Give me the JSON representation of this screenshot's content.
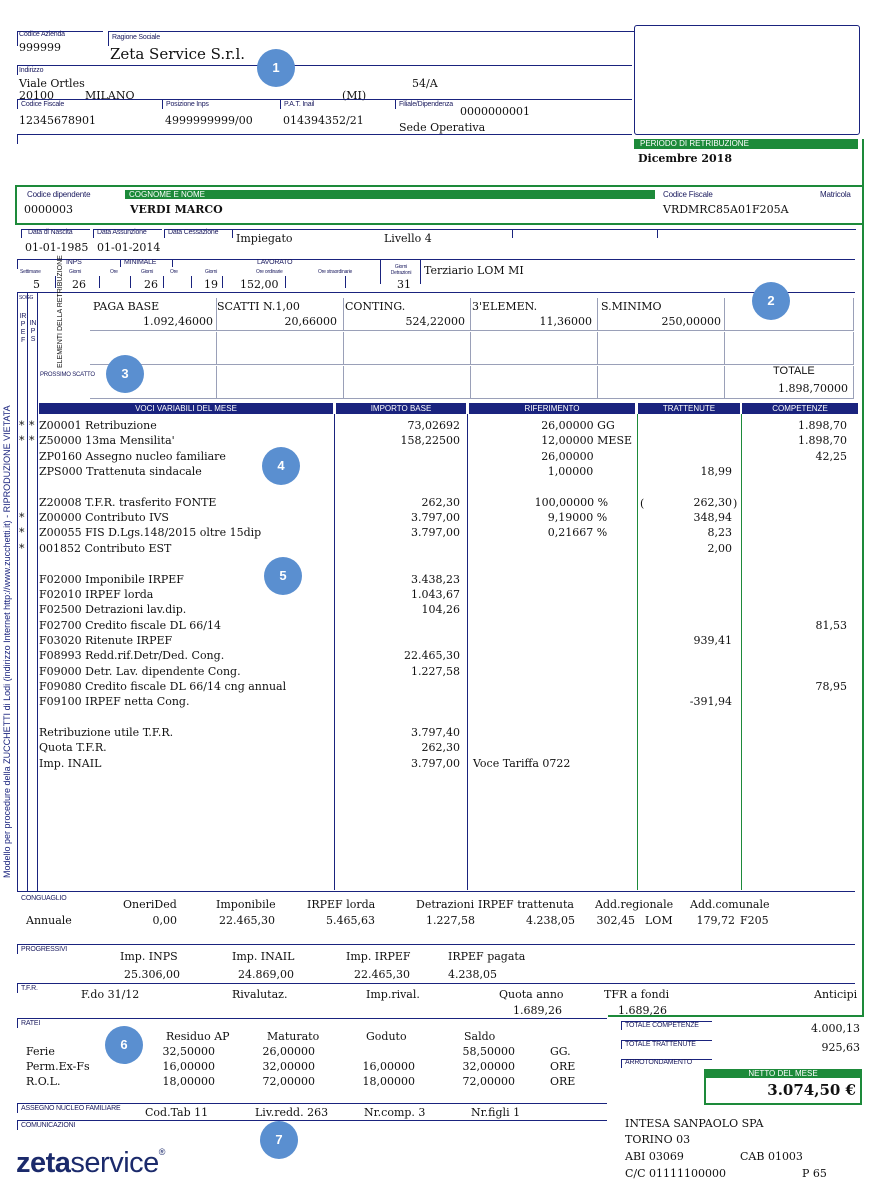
{
  "header": {
    "codice_azienda_label": "Codice Azienda",
    "codice_azienda": "999999",
    "ragione_sociale_label": "Ragione Sociale",
    "ragione_sociale": "Zeta Service S.r.l.",
    "indirizzo_label": "Indirizzo",
    "via": "Viale Ortles",
    "civico": "54/A",
    "cap": "20100",
    "citta": "MILANO",
    "provincia": "(MI)",
    "codice_fiscale_label": "Codice Fiscale",
    "codice_fiscale": "12345678901",
    "posizione_inps_label": "Posizione Inps",
    "posizione_inps": "4999999999/00",
    "pat_inail_label": "P.A.T. Inail",
    "pat_inail": "014394352/21",
    "filiale_label": "Filiale/Dipendenza",
    "filiale_code": "0000000001",
    "sede": "Sede Operativa",
    "periodo_label": "PERIODO DI RETRIBUZIONE",
    "periodo": "Dicembre 2018"
  },
  "employee": {
    "codice_label": "Codice dipendente",
    "codice": "0000003",
    "nome_label": "COGNOME E NOME",
    "nome": "VERDI MARCO",
    "cf_label": "Codice Fiscale",
    "cf": "VRDMRC85A01F205A",
    "matricola_label": "Matricola",
    "nascita_label": "Data di Nascita",
    "nascita": "01-01-1985",
    "assunzione_label": "Data Assunzione",
    "assunzione": "01-01-2014",
    "cessazione_label": "Data Cessazione",
    "qualifica": "Impiegato",
    "livello": "Livello 4",
    "contratto": "Terziario LOM MI"
  },
  "counters": {
    "inps_label": "INPS",
    "minimale_label": "MINIMALE",
    "lavorato_label": "LAVORATO",
    "settimane_label": "Settimane",
    "giorni_label": "Giorni",
    "ore_label": "Ore",
    "ore_ordinarie_label": "Ore ordinarie",
    "ore_straordinarie_label": "Ore straordinarie",
    "giorni_detrazioni_label": "Giorni Detrazioni",
    "settimane": "5",
    "inps_giorni": "26",
    "min_giorni": "26",
    "lav_giorni": "19",
    "ore_ordinarie": "152,00",
    "detrazioni_giorni": "31"
  },
  "elements": {
    "side_label": "ELEMENTI DELLA RETRIBUZIONE",
    "sogg_label": "SOGG",
    "irpef_label": "IRPEF",
    "inps_label": "INPS",
    "prossimo_scatto_label": "PROSSIMO SCATTO",
    "items": [
      {
        "label": "PAGA BASE",
        "value": "1.092,46000"
      },
      {
        "label": "SCATTI N.1,00",
        "value": "20,66000"
      },
      {
        "label": "CONTING.",
        "value": "524,22000"
      },
      {
        "label": "3'ELEMEN.",
        "value": "11,36000"
      },
      {
        "label": "S.MINIMO",
        "value": "250,00000"
      }
    ],
    "totale_label": "TOTALE",
    "totale": "1.898,70000"
  },
  "voci_header": {
    "voci": "VOCI VARIABILI DEL MESE",
    "importo": "IMPORTO BASE",
    "riferimento": "RIFERIMENTO",
    "trattenute": "TRATTENUTE",
    "competenze": "COMPETENZE"
  },
  "voci": [
    {
      "m1": "*",
      "m2": "*",
      "desc": "Z00001 Retribuzione",
      "importo": "73,02692",
      "rif": "26,00000 GG",
      "tratt": "",
      "comp": "1.898,70"
    },
    {
      "m1": "*",
      "m2": "*",
      "desc": "Z50000 13ma Mensilita'",
      "importo": "158,22500",
      "rif": "12,00000 MESE",
      "tratt": "",
      "comp": "1.898,70"
    },
    {
      "m1": "",
      "m2": "",
      "desc": "ZP0160 Assegno nucleo familiare",
      "importo": "",
      "rif": "26,00000",
      "tratt": "",
      "comp": "42,25"
    },
    {
      "m1": "",
      "m2": "",
      "desc": "ZPS000 Trattenuta sindacale",
      "importo": "",
      "rif": "1,00000",
      "tratt": "18,99",
      "comp": ""
    },
    {
      "m1": "",
      "m2": "",
      "desc": "",
      "importo": "",
      "rif": "",
      "tratt": "",
      "comp": ""
    },
    {
      "m1": "",
      "m2": "",
      "desc": "Z20008 T.F.R. trasferito  FONTE",
      "importo": "262,30",
      "rif": "100,00000 %",
      "tratt": "262,30",
      "comp": ""
    },
    {
      "m1": "*",
      "m2": "",
      "desc": "Z00000 Contributo IVS",
      "importo": "3.797,00",
      "rif": "9,19000 %",
      "tratt": "348,94",
      "comp": ""
    },
    {
      "m1": "*",
      "m2": "",
      "desc": "Z00055 FIS D.Lgs.148/2015 oltre 15dip",
      "importo": "3.797,00",
      "rif": "0,21667 %",
      "tratt": "8,23",
      "comp": ""
    },
    {
      "m1": "*",
      "m2": "",
      "desc": "001852 Contributo EST",
      "importo": "",
      "rif": "",
      "tratt": "2,00",
      "comp": ""
    },
    {
      "m1": "",
      "m2": "",
      "desc": "",
      "importo": "",
      "rif": "",
      "tratt": "",
      "comp": ""
    },
    {
      "m1": "",
      "m2": "",
      "desc": "F02000 Imponibile IRPEF",
      "importo": "3.438,23",
      "rif": "",
      "tratt": "",
      "comp": ""
    },
    {
      "m1": "",
      "m2": "",
      "desc": "F02010 IRPEF lorda",
      "importo": "1.043,67",
      "rif": "",
      "tratt": "",
      "comp": ""
    },
    {
      "m1": "",
      "m2": "",
      "desc": "F02500 Detrazioni lav.dip.",
      "importo": "104,26",
      "rif": "",
      "tratt": "",
      "comp": ""
    },
    {
      "m1": "",
      "m2": "",
      "desc": "F02700 Credito fiscale DL 66/14",
      "importo": "",
      "rif": "",
      "tratt": "",
      "comp": "81,53"
    },
    {
      "m1": "",
      "m2": "",
      "desc": "F03020 Ritenute IRPEF",
      "importo": "",
      "rif": "",
      "tratt": "939,41",
      "comp": ""
    },
    {
      "m1": "",
      "m2": "",
      "desc": "F08993 Redd.rif.Detr/Ded.   Cong.",
      "importo": "22.465,30",
      "rif": "",
      "tratt": "",
      "comp": ""
    },
    {
      "m1": "",
      "m2": "",
      "desc": "F09000 Detr. Lav. dipendente Cong.",
      "importo": "1.227,58",
      "rif": "",
      "tratt": "",
      "comp": ""
    },
    {
      "m1": "",
      "m2": "",
      "desc": "F09080 Credito fiscale DL 66/14 cng annual",
      "importo": "",
      "rif": "",
      "tratt": "",
      "comp": "78,95"
    },
    {
      "m1": "",
      "m2": "",
      "desc": "F09100 IRPEF netta       Cong.",
      "importo": "",
      "rif": "",
      "tratt": "-391,94",
      "comp": ""
    },
    {
      "m1": "",
      "m2": "",
      "desc": "",
      "importo": "",
      "rif": "",
      "tratt": "",
      "comp": ""
    },
    {
      "m1": "",
      "m2": "",
      "desc": "        Retribuzione utile T.F.R.",
      "importo": "3.797,40",
      "rif": "",
      "tratt": "",
      "comp": ""
    },
    {
      "m1": "",
      "m2": "",
      "desc": "        Quota T.F.R.",
      "importo": "262,30",
      "rif": "",
      "tratt": "",
      "comp": ""
    },
    {
      "m1": "",
      "m2": "",
      "desc": "        Imp. INAIL",
      "importo": "3.797,00",
      "rif": "Voce Tariffa     0722",
      "tratt": "",
      "comp": ""
    }
  ],
  "side_text": "Modello per procedure della ZUCCHETTI di Lodi (indirizzo Internet http://www.zucchetti.it) - RIPRODUZIONE VIETATA",
  "conguaglio": {
    "label": "CONGUAGLIO",
    "headers": [
      "OneriDed",
      "Imponibile",
      "IRPEF lorda",
      "Detrazioni",
      "IRPEF trattenuta",
      "Add.regionale",
      "Add.comunale"
    ],
    "row_label": "Annuale",
    "values": [
      "0,00",
      "22.465,30",
      "5.465,63",
      "1.227,58",
      "4.238,05",
      "302,45",
      "LOM",
      "179,72",
      "F205"
    ]
  },
  "progressivi": {
    "label": "PROGRESSIVI",
    "headers": [
      "Imp. INPS",
      "Imp. INAIL",
      "Imp. IRPEF",
      "IRPEF pagata"
    ],
    "values": [
      "25.306,00",
      "24.869,00",
      "22.465,30",
      "4.238,05"
    ]
  },
  "tfr": {
    "label": "T.F.R.",
    "headers": [
      "F.do 31/12",
      "Rivalutaz.",
      "Imp.rival.",
      "Quota anno",
      "TFR a fondi",
      "Anticipi"
    ],
    "quota_anno": "1.689,26",
    "tfr_a_fondi": "1.689,26"
  },
  "ratei": {
    "label": "RATEI",
    "headers": [
      "Residuo AP",
      "Maturato",
      "Goduto",
      "Saldo"
    ],
    "rows": [
      {
        "name": "Ferie",
        "residuo": "32,50000",
        "maturato": "26,00000",
        "goduto": "",
        "saldo": "58,50000",
        "unit": "GG."
      },
      {
        "name": "Perm.Ex-Fs",
        "residuo": "16,00000",
        "maturato": "32,00000",
        "goduto": "16,00000",
        "saldo": "32,00000",
        "unit": "ORE"
      },
      {
        "name": "R.O.L.",
        "residuo": "18,00000",
        "maturato": "72,00000",
        "goduto": "18,00000",
        "saldo": "72,00000",
        "unit": "ORE"
      }
    ]
  },
  "totals": {
    "competenze_label": "TOTALE COMPETENZE",
    "competenze": "4.000,13",
    "trattenute_label": "TOTALE TRATTENUTE",
    "trattenute": "925,63",
    "arrotondamento_label": "ARROTONDAMENTO",
    "netto_label": "NETTO DEL MESE",
    "netto": "3.074,50 €"
  },
  "assegno": {
    "label": "ASSEGNO NUCLEO FAMILIARE",
    "cod_tab": "Cod.Tab  11",
    "liv_redd": "Liv.redd.  263",
    "nr_comp": "Nr.comp.  3",
    "nr_figli": "Nr.figli   1"
  },
  "comunicazioni_label": "COMUNICAZIONI",
  "bank": {
    "name": "INTESA SANPAOLO SPA",
    "city": "TORINO 03",
    "abi": "ABI    03069",
    "cab": "CAB  01003",
    "cc": "C/C  01111100000",
    "p": "P    65"
  },
  "logo": {
    "part1": "zeta",
    "part2": "service",
    "reg": "®"
  },
  "markers": [
    "1",
    "2",
    "3",
    "4",
    "5",
    "6",
    "7"
  ],
  "colors": {
    "navy": "#1a237e",
    "green": "#1d8a3a",
    "marker": "#5a8fd0",
    "logo": "#1b2a6b"
  }
}
